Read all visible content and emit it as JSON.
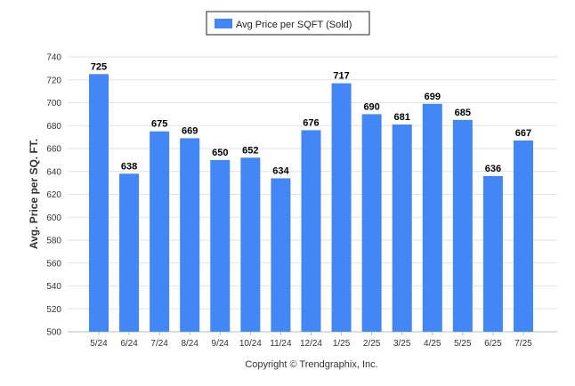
{
  "chart_data": {
    "type": "bar",
    "categories": [
      "5/24",
      "6/24",
      "7/24",
      "8/24",
      "9/24",
      "10/24",
      "11/24",
      "12/24",
      "1/25",
      "2/25",
      "3/25",
      "4/25",
      "5/25",
      "6/25",
      "7/25"
    ],
    "series": [
      {
        "name": "Avg Price per SQFT (Sold)",
        "values": [
          725,
          638,
          675,
          669,
          650,
          652,
          634,
          676,
          717,
          690,
          681,
          699,
          685,
          636,
          667
        ]
      }
    ],
    "ylabel": "Avg. Price per SQ. FT.",
    "xlabel": "",
    "ylim": [
      500,
      740
    ],
    "yticks": [
      500,
      520,
      540,
      560,
      580,
      600,
      620,
      640,
      660,
      680,
      700,
      720,
      740
    ],
    "grid": true,
    "legend_position": "top-center",
    "bar_color": "#4287f5"
  },
  "footer": "Copyright © Trendgraphix, Inc."
}
